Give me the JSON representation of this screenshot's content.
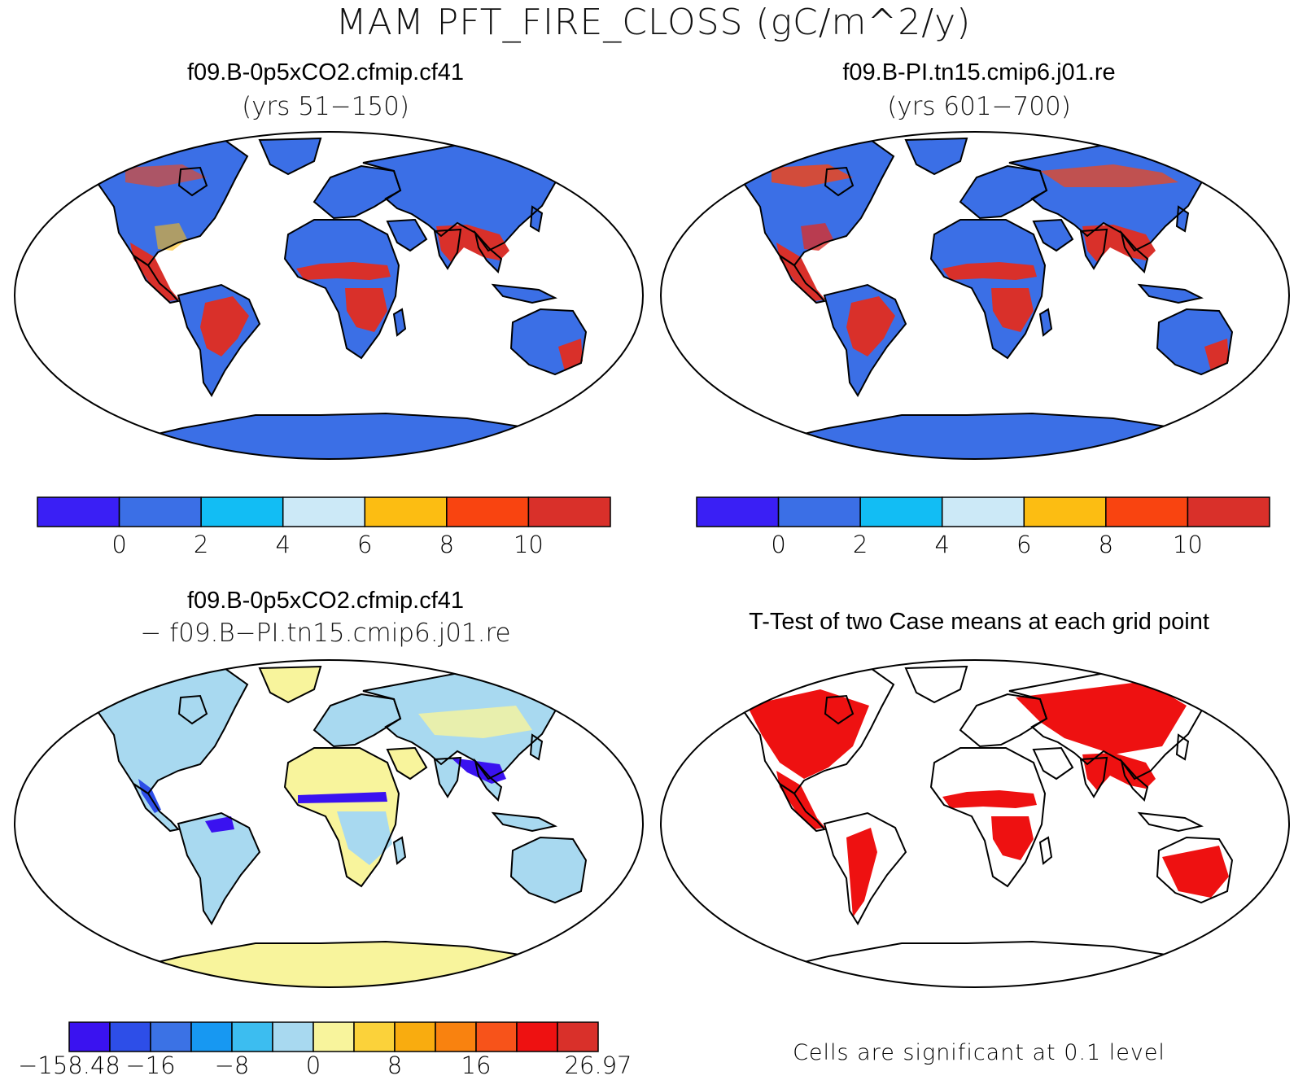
{
  "figure": {
    "title": "MAM PFT_FIRE_CLOSS (gC/m^2/y)"
  },
  "panels": {
    "top_left": {
      "case": "f09.B-0p5xCO2.cfmip.cf41",
      "years": "(yrs 51−150)"
    },
    "top_right": {
      "case": "f09.B-PI.tn15.cmip6.j01.re",
      "years": "(yrs 601−700)"
    },
    "bottom_left": {
      "case": "f09.B-0p5xCO2.cfmip.cf41",
      "minus_case": "− f09.B−PI.tn15.cmip6.j01.re"
    },
    "bottom_right": {
      "title": "T-Test of two Case means at each grid point",
      "note": "Cells are significant at 0.1 level"
    }
  },
  "colorbars": {
    "case": {
      "colors": [
        "#3a1ff5",
        "#3b6fe6",
        "#12bdf4",
        "#cce9f7",
        "#fcbd12",
        "#f94410",
        "#d9302a"
      ],
      "labels": [
        "0",
        "2",
        "4",
        "6",
        "8",
        "10"
      ]
    },
    "diff": {
      "colors": [
        "#3a12f0",
        "#2d4ee8",
        "#3b72e5",
        "#1798f2",
        "#3cbdf0",
        "#a8d9f0",
        "#f8f49c",
        "#fbd23a",
        "#f9ac0f",
        "#f9820f",
        "#f7531a",
        "#ee1111",
        "#d9302a"
      ],
      "labels": [
        "−158.48",
        "−16",
        "−8",
        "0",
        "8",
        "16",
        "26.97"
      ]
    }
  },
  "colors": {
    "land_high": "#d9302a",
    "land_low": "#3b6fe6",
    "diff_base": "#a8d9f0",
    "diff_pos": "#f8f49c",
    "diff_neg": "#3a12f0",
    "significant": "#ee1111"
  }
}
